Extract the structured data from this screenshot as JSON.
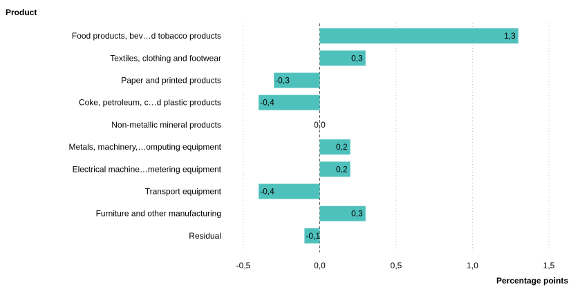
{
  "chart_data": {
    "type": "bar",
    "orientation": "horizontal",
    "category_axis_title": "Product",
    "xlabel": "Percentage points",
    "categories": [
      "Food products, bev…d tobacco products",
      "Textiles, clothing and footwear",
      "Paper and printed products",
      "Coke, petroleum, c…d plastic products",
      "Non-metallic mineral products",
      "Metals, machinery,…omputing equipment",
      "Electrical machine…metering equipment",
      "Transport equipment",
      "Furniture and other manufacturing",
      "Residual"
    ],
    "values": [
      1.3,
      0.3,
      -0.3,
      -0.4,
      0.0,
      0.2,
      0.2,
      -0.4,
      0.3,
      -0.1
    ],
    "value_labels": [
      "1,3",
      "0,3",
      "-0,3",
      "-0,4",
      "0,0",
      "0,2",
      "0,2",
      "-0,4",
      "0,3",
      "-0,1"
    ],
    "xlim": [
      -0.5,
      1.5
    ],
    "xticks": [
      -0.5,
      0.0,
      0.5,
      1.0,
      1.5
    ],
    "xtick_labels": [
      "-0,5",
      "0,0",
      "0,5",
      "1,0",
      "1,5"
    ],
    "bar_color": "#4fc1bc",
    "grid": "vertical-dotted"
  }
}
